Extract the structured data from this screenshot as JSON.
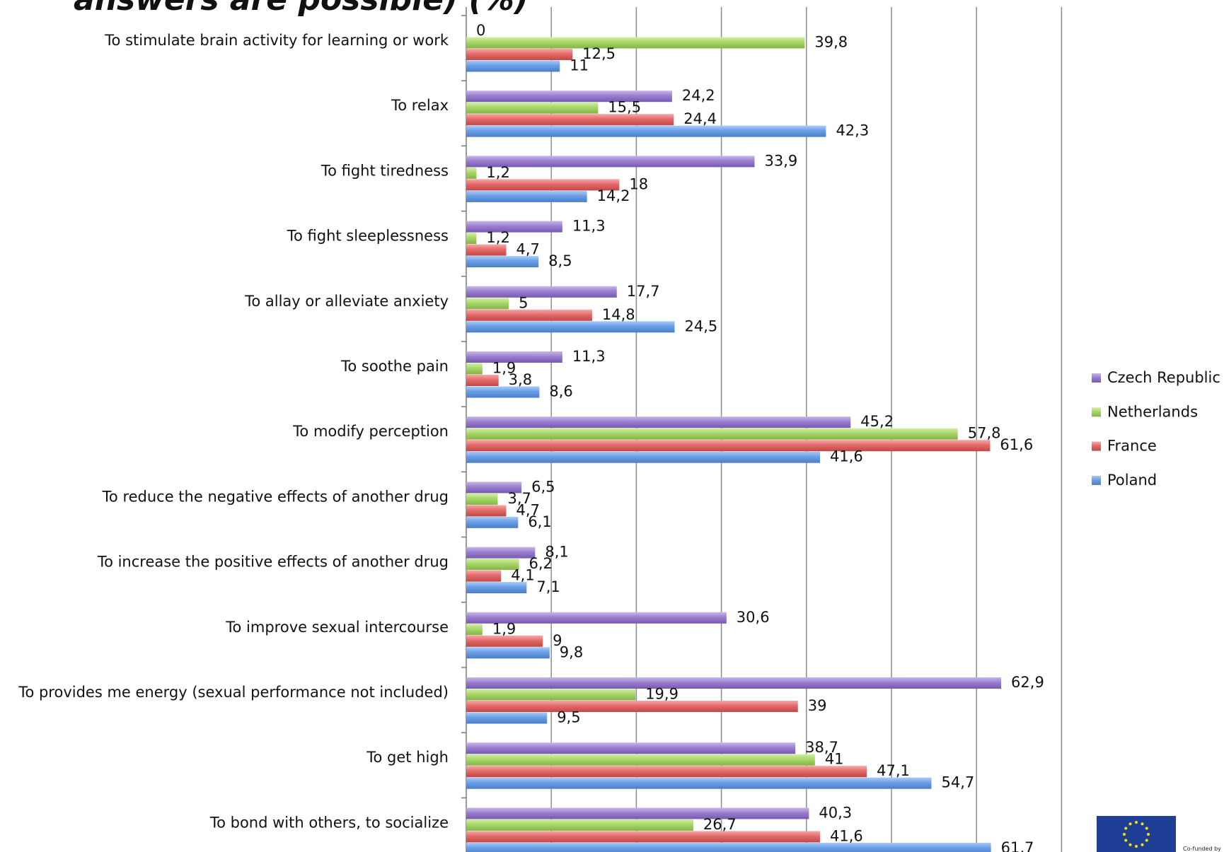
{
  "chart_data": {
    "type": "bar",
    "orientation": "horizontal",
    "title": "answers are possible) (%)",
    "xlim": [
      0,
      70
    ],
    "grid": true,
    "legend_position": "right",
    "categories": [
      "To stimulate brain activity for learning or work",
      "To relax",
      "To fight tiredness",
      "To fight sleeplessness",
      "To allay or alleviate anxiety",
      "To soothe pain",
      "To modify perception",
      "To reduce the negative effects of another drug",
      "To increase the positive effects of another drug",
      "To improve sexual intercourse",
      "To provides me energy (sexual performance not included)",
      "To get high",
      "To bond with others, to socialize"
    ],
    "series": [
      {
        "name": "Czech Republic",
        "color": "#9b7fce",
        "values": [
          0,
          24.2,
          33.9,
          11.3,
          17.7,
          11.3,
          45.2,
          6.5,
          8.1,
          30.6,
          62.9,
          38.7,
          40.3
        ],
        "labels": [
          "0",
          "24,2",
          "33,9",
          "11,3",
          "17,7",
          "11,3",
          "45,2",
          "6,5",
          "8,1",
          "30,6",
          "62,9",
          "38,7",
          "40,3"
        ]
      },
      {
        "name": "Netherlands",
        "color": "#a8d66a",
        "values": [
          39.8,
          15.5,
          1.2,
          1.2,
          5,
          1.9,
          57.8,
          3.7,
          6.2,
          1.9,
          19.9,
          41,
          26.7
        ],
        "labels": [
          "39,8",
          "15,5",
          "1,2",
          "1,2",
          "5",
          "1,9",
          "57,8",
          "3,7",
          "6,2",
          "1,9",
          "19,9",
          "41",
          "26,7"
        ]
      },
      {
        "name": "France",
        "color": "#e46a6a",
        "values": [
          12.5,
          24.4,
          18,
          4.7,
          14.8,
          3.8,
          61.6,
          4.7,
          4.1,
          9,
          39,
          47.1,
          41.6
        ],
        "labels": [
          "12,5",
          "24,4",
          "18",
          "4,7",
          "14,8",
          "3,8",
          "61,6",
          "4,7",
          "4,1",
          "9",
          "39",
          "47,1",
          "41,6"
        ]
      },
      {
        "name": "Poland",
        "color": "#6a9ee6",
        "values": [
          11,
          42.3,
          14.2,
          8.5,
          24.5,
          8.6,
          41.6,
          6.1,
          7.1,
          9.8,
          9.5,
          54.7,
          61.7
        ],
        "labels": [
          "11",
          "42,3",
          "14,2",
          "8,5",
          "24,5",
          "8,6",
          "41,6",
          "6,1",
          "7,1",
          "9,8",
          "9,5",
          "54,7",
          "61,7"
        ]
      }
    ],
    "legend_order": [
      "Czech Republic",
      "Netherlands",
      "France",
      "Poland"
    ]
  },
  "logo": {
    "eu_caption": "Co-funded by"
  }
}
